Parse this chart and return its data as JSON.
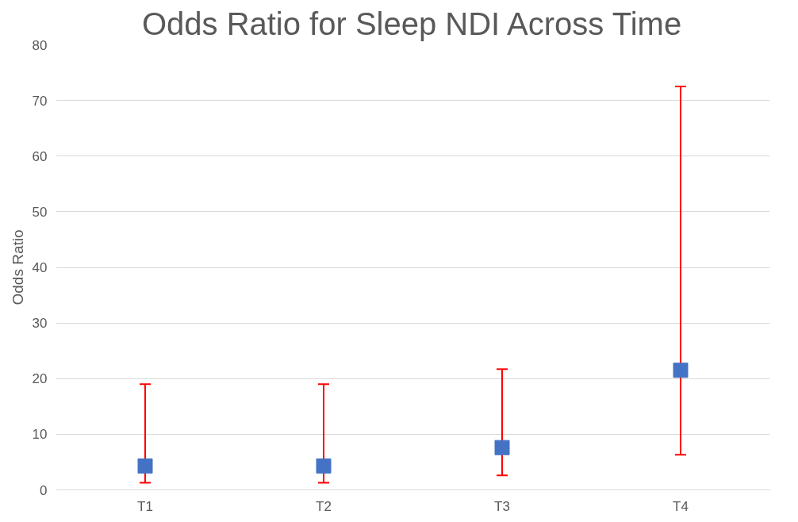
{
  "chart_data": {
    "type": "scatter",
    "title": "Odds Ratio for Sleep NDI Across Time",
    "ylabel": "Odds Ratio",
    "categories": [
      "T1",
      "T2",
      "T3",
      "T4"
    ],
    "series": [
      {
        "color": "#4472c4",
        "values": [
          4.3,
          4.3,
          7.6,
          21.5
        ],
        "errors": [
          [
            1.3,
            19
          ],
          [
            1.3,
            19
          ],
          [
            2.6,
            21.7
          ],
          [
            6.3,
            72.5
          ]
        ]
      }
    ],
    "ylim": [
      0,
      80
    ],
    "yticks": [
      0,
      10,
      20,
      30,
      40,
      50,
      60,
      70,
      80
    ],
    "grid": "y",
    "marker": "square"
  }
}
